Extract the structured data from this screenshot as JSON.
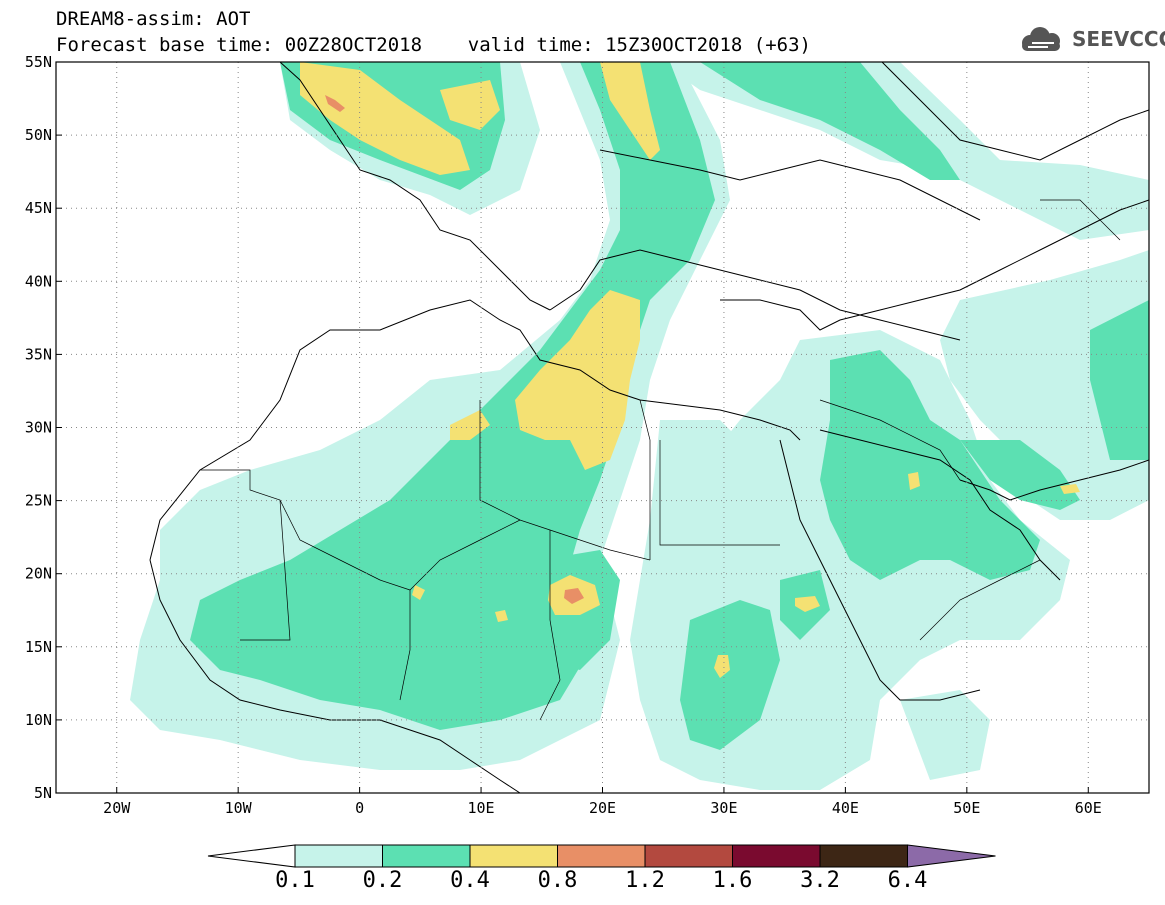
{
  "title": {
    "line1": "DREAM8-assim: AOT",
    "line2": "Forecast base time: 00Z28OCT2018    valid time: 15Z30OCT2018 (+63)"
  },
  "logo": {
    "text": "SEEVCCC",
    "icon": "cloud-icon"
  },
  "map": {
    "lon_range": [
      -25,
      65
    ],
    "lat_range": [
      5,
      55
    ],
    "lat_labels": [
      "55N",
      "50N",
      "45N",
      "40N",
      "35N",
      "30N",
      "25N",
      "20N",
      "15N",
      "10N",
      "5N"
    ],
    "lat_values": [
      55,
      50,
      45,
      40,
      35,
      30,
      25,
      20,
      15,
      10,
      5
    ],
    "lon_labels": [
      "20W",
      "10W",
      "0",
      "10E",
      "20E",
      "30E",
      "40E",
      "50E",
      "60E"
    ],
    "lon_values": [
      -20,
      -10,
      0,
      10,
      20,
      30,
      40,
      50,
      60
    ],
    "grid": "dotted"
  },
  "colorbar": {
    "labels": [
      "0.1",
      "0.2",
      "0.4",
      "0.8",
      "1.2",
      "1.6",
      "3.2",
      "6.4"
    ],
    "colors": [
      "#c6f3ea",
      "#5ce0b2",
      "#f4e173",
      "#e88f66",
      "#b3493f",
      "#7a0a2f",
      "#3d2615",
      "#8c6aa8"
    ],
    "under_color": "#ffffff"
  }
}
